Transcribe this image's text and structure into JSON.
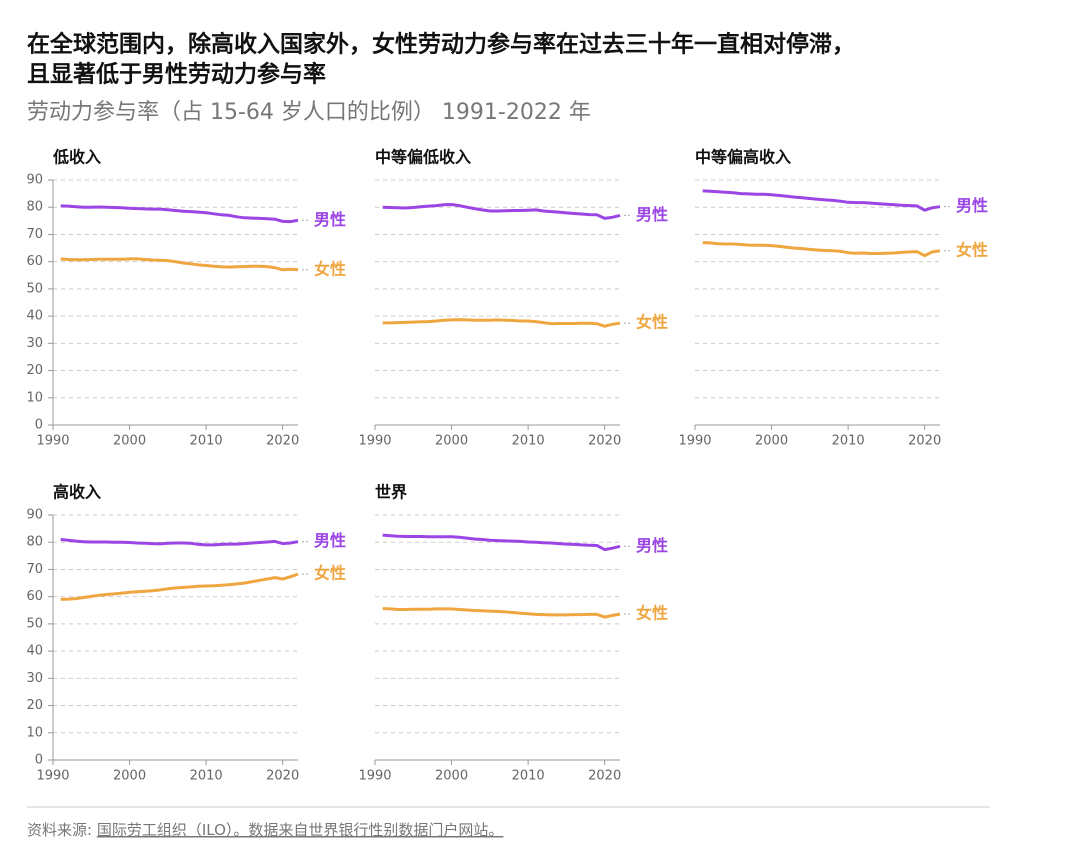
{
  "header": {
    "title_line1": "在全球范围内，除高收入国家外，女性劳动力参与率在过去三十年一直相对停滞，",
    "title_line2": "且显著低于男性劳动力参与率",
    "subtitle": "劳动力参与率（占 15-64 岁人口的比例） 1991-2022 年"
  },
  "source": {
    "prefix": "资料来源: ",
    "link": "国际劳工组织（ILO）。数据来自世界银行性别数据门户网站。"
  },
  "chart_data": [
    {
      "type": "line",
      "title": "低收入",
      "show_ytick_labels": true,
      "x": [
        1991,
        1992,
        1993,
        1994,
        1995,
        1996,
        1997,
        1998,
        1999,
        2000,
        2001,
        2002,
        2003,
        2004,
        2005,
        2006,
        2007,
        2008,
        2009,
        2010,
        2011,
        2012,
        2013,
        2014,
        2015,
        2016,
        2017,
        2018,
        2019,
        2020,
        2021,
        2022
      ],
      "series": [
        {
          "name": "男性",
          "color": "#9b45e4",
          "values": [
            80.5,
            80.4,
            80.2,
            80,
            80,
            80.1,
            80,
            79.9,
            79.8,
            79.6,
            79.5,
            79.4,
            79.3,
            79.3,
            79.1,
            78.8,
            78.5,
            78.4,
            78.2,
            78,
            77.6,
            77.2,
            77,
            76.5,
            76.1,
            76,
            75.9,
            75.8,
            75.6,
            74.8,
            74.7,
            75.2
          ]
        },
        {
          "name": "女性",
          "color": "#f0a640",
          "values": [
            61,
            60.8,
            60.7,
            60.7,
            60.8,
            60.9,
            60.9,
            60.9,
            60.9,
            61,
            61,
            60.8,
            60.6,
            60.5,
            60.4,
            60,
            59.5,
            59.2,
            58.8,
            58.6,
            58.3,
            58.1,
            58,
            58.1,
            58.2,
            58.3,
            58.3,
            58.2,
            57.8,
            57,
            57.2,
            57
          ]
        }
      ],
      "xlim": [
        1990,
        2022
      ],
      "xticks": [
        1990,
        2000,
        2010,
        2020
      ],
      "ylim": [
        0,
        90
      ],
      "yticks": [
        0,
        10,
        20,
        30,
        40,
        50,
        60,
        70,
        80,
        90
      ],
      "grid": true
    },
    {
      "type": "line",
      "title": "中等偏低收入",
      "show_ytick_labels": false,
      "x": [
        1991,
        1992,
        1993,
        1994,
        1995,
        1996,
        1997,
        1998,
        1999,
        2000,
        2001,
        2002,
        2003,
        2004,
        2005,
        2006,
        2007,
        2008,
        2009,
        2010,
        2011,
        2012,
        2013,
        2014,
        2015,
        2016,
        2017,
        2018,
        2019,
        2020,
        2021,
        2022
      ],
      "series": [
        {
          "name": "男性",
          "color": "#9b45e4",
          "values": [
            80,
            79.9,
            79.8,
            79.7,
            79.9,
            80.2,
            80.4,
            80.6,
            80.9,
            81,
            80.6,
            80,
            79.5,
            79,
            78.6,
            78.6,
            78.7,
            78.8,
            78.8,
            78.9,
            79,
            78.6,
            78.4,
            78.2,
            77.9,
            77.7,
            77.5,
            77.3,
            77.2,
            75.9,
            76.3,
            77
          ]
        },
        {
          "name": "女性",
          "color": "#f0a640",
          "values": [
            37.5,
            37.5,
            37.6,
            37.7,
            37.8,
            37.9,
            38,
            38.2,
            38.5,
            38.6,
            38.7,
            38.6,
            38.5,
            38.5,
            38.5,
            38.6,
            38.5,
            38.4,
            38.2,
            38.2,
            38,
            37.6,
            37.2,
            37.3,
            37.3,
            37.3,
            37.4,
            37.4,
            37.2,
            36.3,
            37,
            37.4
          ]
        }
      ],
      "xlim": [
        1990,
        2022
      ],
      "xticks": [
        1990,
        2000,
        2010,
        2020
      ],
      "ylim": [
        0,
        90
      ],
      "yticks": [
        0,
        10,
        20,
        30,
        40,
        50,
        60,
        70,
        80,
        90
      ],
      "grid": true
    },
    {
      "type": "line",
      "title": "中等偏高收入",
      "show_ytick_labels": false,
      "x": [
        1991,
        1992,
        1993,
        1994,
        1995,
        1996,
        1997,
        1998,
        1999,
        2000,
        2001,
        2002,
        2003,
        2004,
        2005,
        2006,
        2007,
        2008,
        2009,
        2010,
        2011,
        2012,
        2013,
        2014,
        2015,
        2016,
        2017,
        2018,
        2019,
        2020,
        2021,
        2022
      ],
      "series": [
        {
          "name": "男性",
          "color": "#9b45e4",
          "values": [
            86,
            85.9,
            85.7,
            85.5,
            85.3,
            85,
            84.9,
            84.8,
            84.8,
            84.6,
            84.3,
            84,
            83.7,
            83.5,
            83.2,
            82.9,
            82.7,
            82.5,
            82.2,
            81.8,
            81.7,
            81.7,
            81.5,
            81.3,
            81.1,
            80.9,
            80.7,
            80.6,
            80.5,
            78.9,
            79.8,
            80.2
          ]
        },
        {
          "name": "女性",
          "color": "#f0a640",
          "values": [
            67,
            66.9,
            66.6,
            66.5,
            66.5,
            66.3,
            66.1,
            66,
            66,
            65.9,
            65.6,
            65.3,
            65,
            64.8,
            64.5,
            64.3,
            64.1,
            64,
            63.8,
            63.3,
            63.1,
            63.2,
            63,
            63,
            63.1,
            63.2,
            63.4,
            63.6,
            63.7,
            62.2,
            63.6,
            64
          ]
        }
      ],
      "xlim": [
        1990,
        2022
      ],
      "xticks": [
        1990,
        2000,
        2010,
        2020
      ],
      "ylim": [
        0,
        90
      ],
      "yticks": [
        0,
        10,
        20,
        30,
        40,
        50,
        60,
        70,
        80,
        90
      ],
      "grid": true
    },
    {
      "type": "line",
      "title": "高收入",
      "show_ytick_labels": true,
      "x": [
        1991,
        1992,
        1993,
        1994,
        1995,
        1996,
        1997,
        1998,
        1999,
        2000,
        2001,
        2002,
        2003,
        2004,
        2005,
        2006,
        2007,
        2008,
        2009,
        2010,
        2011,
        2012,
        2013,
        2014,
        2015,
        2016,
        2017,
        2018,
        2019,
        2020,
        2021,
        2022
      ],
      "series": [
        {
          "name": "男性",
          "color": "#9b45e4",
          "values": [
            81,
            80.7,
            80.4,
            80.2,
            80.1,
            80.1,
            80.1,
            80,
            80,
            79.9,
            79.7,
            79.6,
            79.5,
            79.4,
            79.6,
            79.7,
            79.7,
            79.6,
            79.2,
            79,
            79,
            79.2,
            79.3,
            79.3,
            79.5,
            79.7,
            79.9,
            80.1,
            80.3,
            79.5,
            79.7,
            80.2
          ]
        },
        {
          "name": "女性",
          "color": "#f0a640",
          "values": [
            59,
            59.1,
            59.3,
            59.7,
            60.1,
            60.5,
            60.8,
            61,
            61.3,
            61.6,
            61.8,
            62,
            62.2,
            62.5,
            62.9,
            63.2,
            63.4,
            63.6,
            63.8,
            63.9,
            64,
            64.2,
            64.4,
            64.7,
            65,
            65.5,
            66,
            66.5,
            67,
            66.5,
            67.3,
            68.3
          ]
        }
      ],
      "xlim": [
        1990,
        2022
      ],
      "xticks": [
        1990,
        2000,
        2010,
        2020
      ],
      "ylim": [
        0,
        90
      ],
      "yticks": [
        0,
        10,
        20,
        30,
        40,
        50,
        60,
        70,
        80,
        90
      ],
      "grid": true
    },
    {
      "type": "line",
      "title": "世界",
      "show_ytick_labels": false,
      "x": [
        1991,
        1992,
        1993,
        1994,
        1995,
        1996,
        1997,
        1998,
        1999,
        2000,
        2001,
        2002,
        2003,
        2004,
        2005,
        2006,
        2007,
        2008,
        2009,
        2010,
        2011,
        2012,
        2013,
        2014,
        2015,
        2016,
        2017,
        2018,
        2019,
        2020,
        2021,
        2022
      ],
      "series": [
        {
          "name": "男性",
          "color": "#9b45e4",
          "values": [
            82.6,
            82.4,
            82.2,
            82.1,
            82.1,
            82.1,
            82,
            82,
            82,
            82,
            81.8,
            81.5,
            81.2,
            81,
            80.7,
            80.6,
            80.5,
            80.4,
            80.3,
            80.1,
            80,
            79.8,
            79.7,
            79.5,
            79.3,
            79.2,
            79,
            78.9,
            78.8,
            77.3,
            77.8,
            78.5
          ]
        },
        {
          "name": "女性",
          "color": "#f0a640",
          "values": [
            55.6,
            55.5,
            55.3,
            55.3,
            55.4,
            55.4,
            55.4,
            55.5,
            55.5,
            55.5,
            55.3,
            55.1,
            54.9,
            54.8,
            54.7,
            54.6,
            54.4,
            54.2,
            53.9,
            53.7,
            53.5,
            53.4,
            53.3,
            53.3,
            53.3,
            53.4,
            53.4,
            53.5,
            53.5,
            52.5,
            53.1,
            53.6
          ]
        }
      ],
      "xlim": [
        1990,
        2022
      ],
      "xticks": [
        1990,
        2000,
        2010,
        2020
      ],
      "ylim": [
        0,
        90
      ],
      "yticks": [
        0,
        10,
        20,
        30,
        40,
        50,
        60,
        70,
        80,
        90
      ],
      "grid": true
    }
  ]
}
